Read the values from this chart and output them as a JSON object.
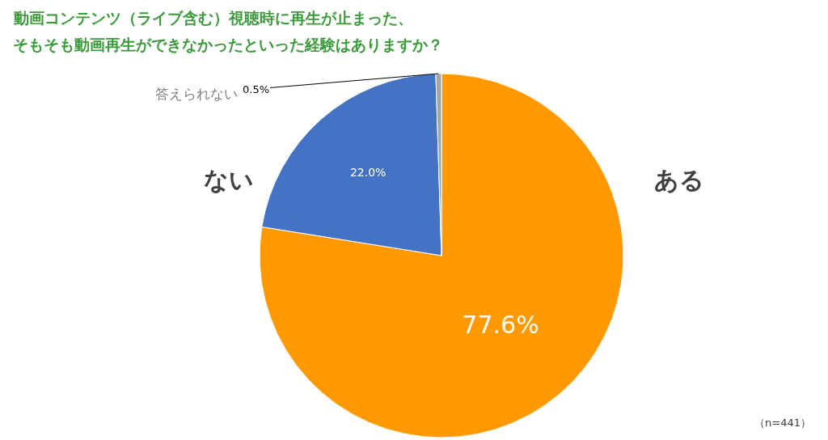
{
  "chart_data": {
    "type": "pie",
    "title": "動画コンテンツ（ライブ含む）視聴時に再生が止まった、",
    "subtitle": "そもそも動画再生ができなかったといった経験はありますか？",
    "categories": [
      "ある",
      "ない",
      "答えられない"
    ],
    "values": [
      77.6,
      22.0,
      0.5
    ],
    "colors": [
      "#ff9900",
      "#4472c4",
      "#a5a5a5"
    ],
    "value_labels": [
      "77.6%",
      "22.0%",
      "0.5%"
    ],
    "annotations": [
      "（n=441）"
    ]
  }
}
